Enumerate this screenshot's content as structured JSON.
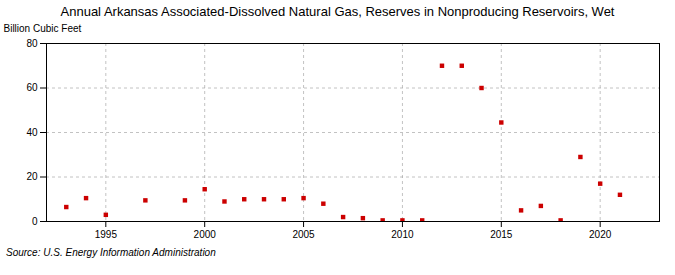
{
  "chart_data": {
    "type": "scatter",
    "title": "Annual Arkansas Associated-Dissolved Natural Gas, Reserves in Nonproducing Reservoirs, Wet",
    "ylabel": "Billion Cubic Feet",
    "annotations": [
      "Source: U.S. Energy Information Administration"
    ],
    "x": [
      1993,
      1994,
      1995,
      1997,
      1999,
      2000,
      2001,
      2002,
      2003,
      2004,
      2005,
      2006,
      2007,
      2008,
      2009,
      2010,
      2011,
      2012,
      2013,
      2014,
      2015,
      2016,
      2017,
      2018,
      2019,
      2020,
      2021
    ],
    "values": [
      6.5,
      10.5,
      3.0,
      9.5,
      9.5,
      14.5,
      9.0,
      10.0,
      10.0,
      10.0,
      10.5,
      8.0,
      2.0,
      1.5,
      0.5,
      0.5,
      0.5,
      70.0,
      70.0,
      60.0,
      44.5,
      5.0,
      7.0,
      0.5,
      29.0,
      17.0,
      12.0
    ],
    "color": "#cc0000",
    "marker": "square",
    "xlim": [
      1992,
      2023
    ],
    "xticks": [
      1995,
      2000,
      2005,
      2010,
      2015,
      2020
    ],
    "ylim": [
      0,
      80
    ],
    "yticks": [
      0,
      20,
      40,
      60,
      80
    ],
    "grid": true
  }
}
